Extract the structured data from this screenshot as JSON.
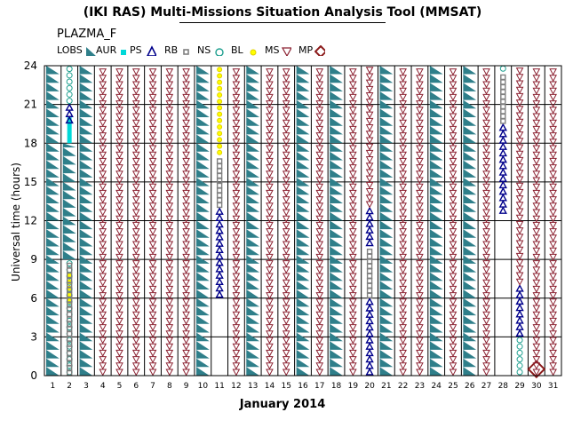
{
  "chart_data": {
    "type": "heatmap",
    "title": "(IKI RAS) Multi-Missions Situation Analysis Tool (MMSAT)",
    "subtitle": "PLAZMA_F",
    "xlabel": "January 2014",
    "ylabel": "Universal time (hours)",
    "xlim": [
      1,
      32
    ],
    "ylim": [
      0,
      24
    ],
    "x_ticks": [
      "1",
      "2",
      "3",
      "4",
      "5",
      "6",
      "7",
      "8",
      "9",
      "10",
      "11",
      "12",
      "13",
      "14",
      "15",
      "16",
      "17",
      "18",
      "19",
      "20",
      "21",
      "22",
      "23",
      "24",
      "25",
      "26",
      "27",
      "28",
      "29",
      "30",
      "31"
    ],
    "y_ticks": [
      "0",
      "3",
      "6",
      "9",
      "12",
      "15",
      "18",
      "21",
      "24"
    ],
    "grid": true,
    "legend_position": "top",
    "regions": [
      {
        "key": "LOBS",
        "label": "LOBS",
        "color": "#2f7f8a",
        "marker": "sawtooth"
      },
      {
        "key": "AUR",
        "label": "AUR",
        "color": "#00d8d8",
        "marker": "square"
      },
      {
        "key": "PS",
        "label": "PS",
        "color": "#00008b",
        "marker": "triangle-up"
      },
      {
        "key": "RB",
        "label": "RB",
        "color": "#808080",
        "marker": "square-open"
      },
      {
        "key": "NS",
        "label": "NS",
        "color": "#20a090",
        "marker": "circle-open"
      },
      {
        "key": "BL",
        "label": "BL",
        "color": "#ffff00",
        "marker": "circle-filled"
      },
      {
        "key": "MS",
        "label": "MS",
        "color": "#8b2030",
        "marker": "triangle-down"
      },
      {
        "key": "MP",
        "label": "MP",
        "color": "#8b1a1a",
        "marker": "diamond"
      }
    ],
    "intervals": [
      {
        "day": 1,
        "region": "LOBS",
        "start": 0,
        "end": 24
      },
      {
        "day": 2,
        "region": "NS",
        "start": 0,
        "end": 9
      },
      {
        "day": 2,
        "region": "BL",
        "start": 5.5,
        "end": 8
      },
      {
        "day": 2,
        "region": "RB",
        "start": 0,
        "end": 9
      },
      {
        "day": 2,
        "region": "LOBS",
        "start": 9,
        "end": 18
      },
      {
        "day": 2,
        "region": "AUR",
        "start": 18,
        "end": 20
      },
      {
        "day": 2,
        "region": "PS",
        "start": 19.5,
        "end": 21
      },
      {
        "day": 2,
        "region": "NS",
        "start": 21,
        "end": 24
      },
      {
        "day": 3,
        "region": "LOBS",
        "start": 0,
        "end": 24
      },
      {
        "day": 4,
        "region": "MS",
        "start": 0,
        "end": 24
      },
      {
        "day": 5,
        "region": "MS",
        "start": 0,
        "end": 24
      },
      {
        "day": 6,
        "region": "MS",
        "start": 0,
        "end": 24
      },
      {
        "day": 7,
        "region": "MS",
        "start": 0,
        "end": 24
      },
      {
        "day": 8,
        "region": "MS",
        "start": 0,
        "end": 24
      },
      {
        "day": 9,
        "region": "MS",
        "start": 0,
        "end": 24
      },
      {
        "day": 10,
        "region": "LOBS",
        "start": 0,
        "end": 24
      },
      {
        "day": 11,
        "region": "PS",
        "start": 6,
        "end": 13
      },
      {
        "day": 11,
        "region": "RB",
        "start": 13,
        "end": 17
      },
      {
        "day": 11,
        "region": "BL",
        "start": 17,
        "end": 24
      },
      {
        "day": 12,
        "region": "MS",
        "start": 0,
        "end": 24
      },
      {
        "day": 13,
        "region": "LOBS",
        "start": 0,
        "end": 24
      },
      {
        "day": 14,
        "region": "MS",
        "start": 0,
        "end": 24
      },
      {
        "day": 15,
        "region": "MS",
        "start": 0,
        "end": 24
      },
      {
        "day": 16,
        "region": "LOBS",
        "start": 0,
        "end": 24
      },
      {
        "day": 17,
        "region": "MS",
        "start": 0,
        "end": 24
      },
      {
        "day": 18,
        "region": "LOBS",
        "start": 0,
        "end": 24
      },
      {
        "day": 19,
        "region": "MS",
        "start": 0,
        "end": 24
      },
      {
        "day": 20,
        "region": "PS",
        "start": 0,
        "end": 6
      },
      {
        "day": 20,
        "region": "RB",
        "start": 6,
        "end": 10
      },
      {
        "day": 20,
        "region": "PS",
        "start": 10,
        "end": 13
      },
      {
        "day": 20,
        "region": "MS",
        "start": 13,
        "end": 24
      },
      {
        "day": 21,
        "region": "LOBS",
        "start": 0,
        "end": 24
      },
      {
        "day": 22,
        "region": "MS",
        "start": 0,
        "end": 24
      },
      {
        "day": 23,
        "region": "MS",
        "start": 0,
        "end": 24
      },
      {
        "day": 24,
        "region": "LOBS",
        "start": 0,
        "end": 24
      },
      {
        "day": 25,
        "region": "MS",
        "start": 0,
        "end": 24
      },
      {
        "day": 26,
        "region": "LOBS",
        "start": 0,
        "end": 24
      },
      {
        "day": 27,
        "region": "MS",
        "start": 0,
        "end": 24
      },
      {
        "day": 28,
        "region": "PS",
        "start": 12.5,
        "end": 19.5
      },
      {
        "day": 28,
        "region": "RB",
        "start": 19.5,
        "end": 23.5
      },
      {
        "day": 28,
        "region": "NS",
        "start": 23.5,
        "end": 24
      },
      {
        "day": 29,
        "region": "PS",
        "start": 3,
        "end": 7
      },
      {
        "day": 29,
        "region": "NS",
        "start": 0,
        "end": 3
      },
      {
        "day": 29,
        "region": "MS",
        "start": 7,
        "end": 24
      },
      {
        "day": 30,
        "region": "MP",
        "start": 0,
        "end": 1
      },
      {
        "day": 30,
        "region": "MS",
        "start": 0,
        "end": 24
      },
      {
        "day": 31,
        "region": "MS",
        "start": 0,
        "end": 24
      }
    ]
  }
}
